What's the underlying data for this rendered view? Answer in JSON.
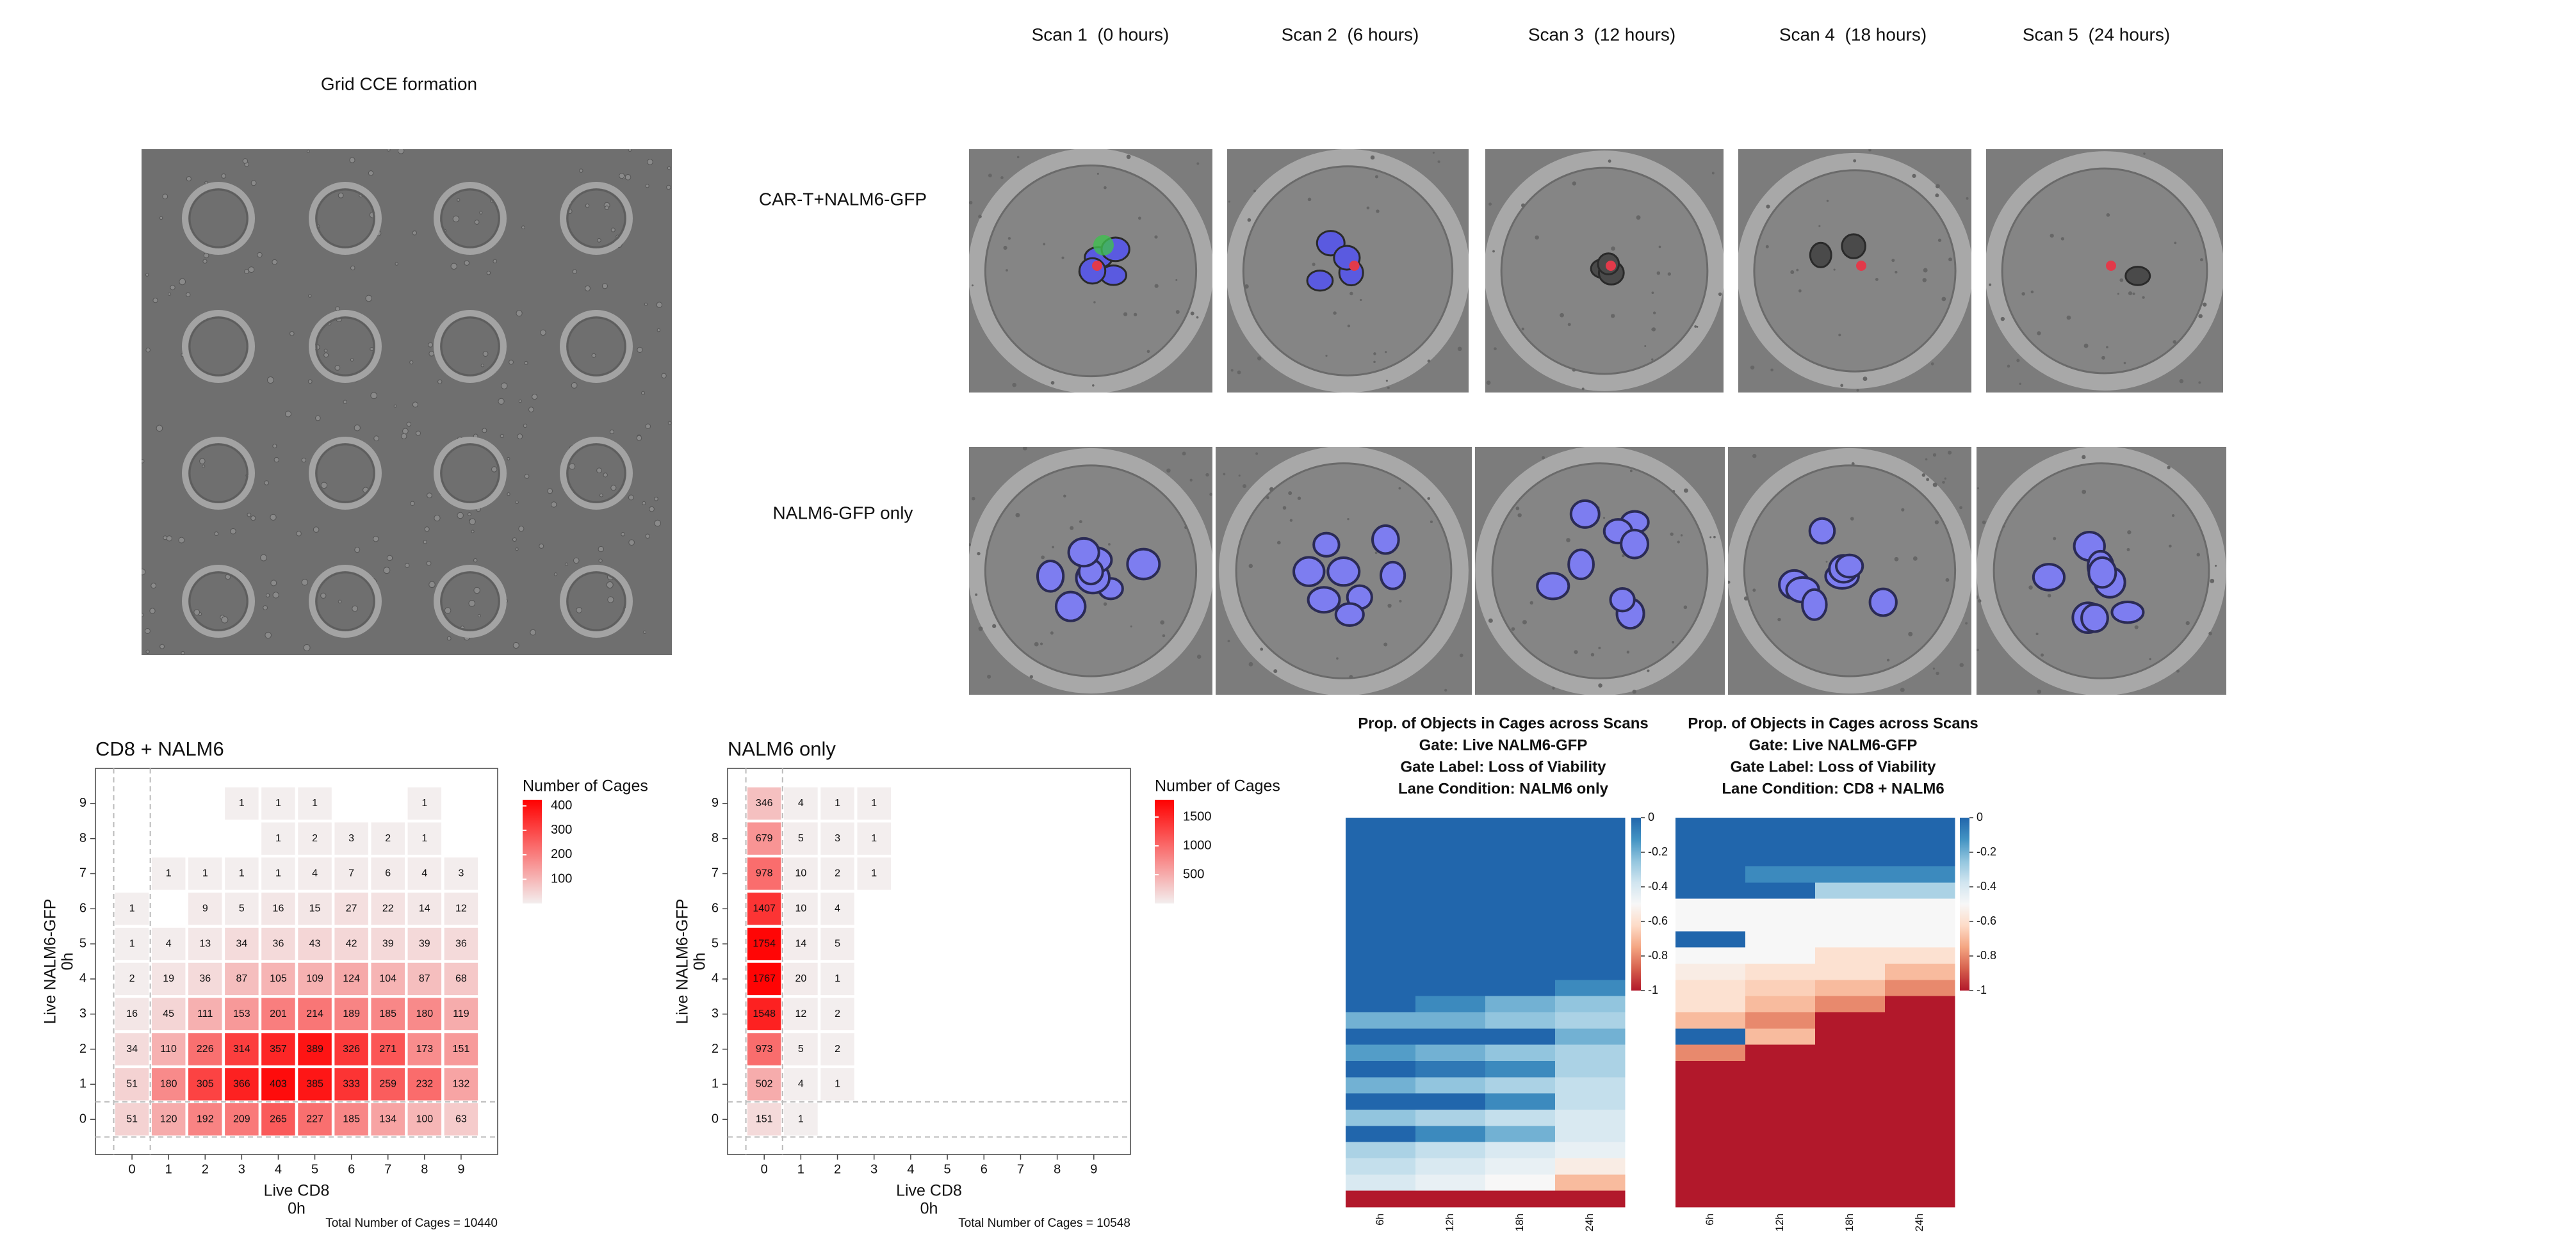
{
  "grid_panel": {
    "title": "Grid CCE formation"
  },
  "scans": [
    "Scan 1  (0 hours)",
    "Scan 2  (6 hours)",
    "Scan 3  (12 hours)",
    "Scan 4  (18 hours)",
    "Scan 5  (24 hours)"
  ],
  "conditions": [
    "CAR-T+NALM6-GFP",
    "NALM6-GFP only"
  ],
  "chart_data": [
    {
      "type": "heatmap",
      "title": "CD8 + NALM6",
      "xlabel": "Live CD8",
      "xlabel2": "0h",
      "ylabel": "Live NALM6-GFP",
      "ylabel2": "0h",
      "x": [
        0,
        1,
        2,
        3,
        4,
        5,
        6,
        7,
        8,
        9
      ],
      "y": [
        0,
        1,
        2,
        3,
        4,
        5,
        6,
        7,
        8,
        9
      ],
      "z": [
        [
          51,
          120,
          192,
          209,
          265,
          227,
          185,
          134,
          100,
          63
        ],
        [
          51,
          180,
          305,
          366,
          403,
          385,
          333,
          259,
          232,
          132
        ],
        [
          34,
          110,
          226,
          314,
          357,
          389,
          326,
          271,
          173,
          151
        ],
        [
          16,
          45,
          111,
          153,
          201,
          214,
          189,
          185,
          180,
          119
        ],
        [
          2,
          19,
          36,
          87,
          105,
          109,
          124,
          104,
          87,
          68
        ],
        [
          1,
          4,
          13,
          34,
          36,
          43,
          42,
          39,
          39,
          36
        ],
        [
          1,
          null,
          9,
          5,
          16,
          15,
          27,
          22,
          14,
          12
        ],
        [
          null,
          1,
          1,
          1,
          1,
          4,
          7,
          6,
          4,
          3
        ],
        [
          null,
          null,
          null,
          null,
          1,
          2,
          3,
          2,
          1,
          null
        ],
        [
          null,
          null,
          null,
          1,
          1,
          1,
          null,
          null,
          1,
          null
        ]
      ],
      "xlim": [
        -1,
        10
      ],
      "ylim": [
        -1,
        10
      ],
      "xticks": [
        0,
        1,
        2,
        3,
        4,
        5,
        6,
        7,
        8,
        9
      ],
      "yticks": [
        0,
        1,
        2,
        3,
        4,
        5,
        6,
        7,
        8,
        9
      ],
      "legend_title": "Number of Cages",
      "clim": [
        1,
        425
      ],
      "cticks": [
        100,
        200,
        300,
        400
      ],
      "colors": [
        "#f3eeee",
        "#ff0000"
      ],
      "note": "Total Number of Cages = 10440"
    },
    {
      "type": "heatmap",
      "title": "NALM6 only",
      "xlabel": "Live CD8",
      "xlabel2": "0h",
      "ylabel": "Live NALM6-GFP",
      "ylabel2": "0h",
      "x": [
        0,
        1,
        2,
        3,
        4,
        5,
        6,
        7,
        8,
        9
      ],
      "y": [
        0,
        1,
        2,
        3,
        4,
        5,
        6,
        7,
        8,
        9
      ],
      "z": [
        [
          151,
          1,
          null,
          null,
          null,
          null,
          null,
          null,
          null,
          null
        ],
        [
          502,
          4,
          1,
          null,
          null,
          null,
          null,
          null,
          null,
          null
        ],
        [
          973,
          5,
          2,
          null,
          null,
          null,
          null,
          null,
          null,
          null
        ],
        [
          1548,
          12,
          2,
          null,
          null,
          null,
          null,
          null,
          null,
          null
        ],
        [
          1767,
          20,
          1,
          null,
          null,
          null,
          null,
          null,
          null,
          null
        ],
        [
          1754,
          14,
          5,
          null,
          null,
          null,
          null,
          null,
          null,
          null
        ],
        [
          1407,
          10,
          4,
          null,
          null,
          null,
          null,
          null,
          null,
          null
        ],
        [
          978,
          10,
          2,
          1,
          null,
          null,
          null,
          null,
          null,
          null
        ],
        [
          679,
          5,
          3,
          1,
          null,
          null,
          null,
          null,
          null,
          null
        ],
        [
          346,
          4,
          1,
          1,
          null,
          null,
          null,
          null,
          null,
          null
        ]
      ],
      "xlim": [
        -1,
        10
      ],
      "ylim": [
        -1,
        10
      ],
      "xticks": [
        0,
        1,
        2,
        3,
        4,
        5,
        6,
        7,
        8,
        9
      ],
      "yticks": [
        0,
        1,
        2,
        3,
        4,
        5,
        6,
        7,
        8,
        9
      ],
      "legend_title": "Number of Cages",
      "clim": [
        1,
        1800
      ],
      "cticks": [
        500,
        1000,
        1500
      ],
      "colors": [
        "#f3eeee",
        "#ff0000"
      ],
      "note": "Total Number of Cages = 10548"
    },
    {
      "type": "rowheatmap",
      "title": [
        "Prop. of Objects in Cages across Scans",
        "Gate: Live NALM6-GFP",
        "Gate Label: Loss of Viability",
        "Lane Condition: NALM6 only"
      ],
      "categories": [
        "6h",
        "12h",
        "18h",
        "24h"
      ],
      "rows": [
        [
          0,
          0,
          0,
          0
        ],
        [
          0,
          0,
          0,
          0
        ],
        [
          0,
          0,
          0,
          0
        ],
        [
          0,
          0,
          0,
          0
        ],
        [
          0,
          0,
          0,
          0
        ],
        [
          0,
          0,
          0,
          0
        ],
        [
          0,
          0,
          0,
          0
        ],
        [
          0,
          0,
          0,
          0
        ],
        [
          0,
          0,
          0,
          0
        ],
        [
          0,
          0,
          0,
          0
        ],
        [
          0,
          0,
          0,
          -0.1
        ],
        [
          0,
          -0.1,
          -0.2,
          -0.25
        ],
        [
          -0.2,
          -0.2,
          -0.25,
          -0.3
        ],
        [
          0,
          0,
          0,
          -0.2
        ],
        [
          -0.15,
          -0.2,
          -0.25,
          -0.3
        ],
        [
          0,
          -0.05,
          -0.1,
          -0.3
        ],
        [
          -0.2,
          -0.25,
          -0.3,
          -0.35
        ],
        [
          0,
          0,
          -0.1,
          -0.35
        ],
        [
          -0.25,
          -0.3,
          -0.35,
          -0.4
        ],
        [
          0,
          -0.1,
          -0.2,
          -0.4
        ],
        [
          -0.3,
          -0.35,
          -0.4,
          -0.45
        ],
        [
          -0.35,
          -0.4,
          -0.45,
          -0.55
        ],
        [
          -0.4,
          -0.45,
          -0.5,
          -0.7
        ],
        [
          -1,
          -1,
          -1,
          -1
        ]
      ],
      "clim": [
        -1,
        0
      ],
      "cticks": [
        0,
        -0.2,
        -0.4,
        -0.6,
        -0.8,
        -1
      ],
      "colors": [
        "#b2182b",
        "#d6604d",
        "#f4a582",
        "#fddbc7",
        "#f7f7f7",
        "#d1e5f0",
        "#92c5de",
        "#4393c3",
        "#2166ac"
      ]
    },
    {
      "type": "rowheatmap",
      "title": [
        "Prop. of Objects in Cages across Scans",
        "Gate: Live NALM6-GFP",
        "Gate Label: Loss of Viability",
        "Lane Condition: CD8 + NALM6"
      ],
      "categories": [
        "6h",
        "12h",
        "18h",
        "24h"
      ],
      "rows": [
        [
          0,
          0,
          0,
          0
        ],
        [
          0,
          0,
          0,
          0
        ],
        [
          0,
          0,
          0,
          0
        ],
        [
          0,
          -0.1,
          -0.1,
          -0.1
        ],
        [
          0,
          0,
          -0.3,
          -0.3
        ],
        [
          -0.5,
          -0.5,
          -0.5,
          -0.5
        ],
        [
          -0.5,
          -0.5,
          -0.5,
          -0.5
        ],
        [
          0,
          -0.5,
          -0.5,
          -0.5
        ],
        [
          -0.5,
          -0.5,
          -0.6,
          -0.6
        ],
        [
          -0.55,
          -0.6,
          -0.6,
          -0.7
        ],
        [
          -0.6,
          -0.65,
          -0.7,
          -0.8
        ],
        [
          -0.6,
          -0.7,
          -0.8,
          -1
        ],
        [
          -0.7,
          -0.8,
          -1,
          -1
        ],
        [
          0,
          -0.7,
          -1,
          -1
        ],
        [
          -0.8,
          -1,
          -1,
          -1
        ],
        [
          -1,
          -1,
          -1,
          -1
        ],
        [
          -1,
          -1,
          -1,
          -1
        ],
        [
          -1,
          -1,
          -1,
          -1
        ],
        [
          -1,
          -1,
          -1,
          -1
        ],
        [
          -1,
          -1,
          -1,
          -1
        ],
        [
          -1,
          -1,
          -1,
          -1
        ],
        [
          -1,
          -1,
          -1,
          -1
        ],
        [
          -1,
          -1,
          -1,
          -1
        ],
        [
          -1,
          -1,
          -1,
          -1
        ]
      ],
      "clim": [
        -1,
        0
      ],
      "cticks": [
        0,
        -0.2,
        -0.4,
        -0.6,
        -0.8,
        -1
      ],
      "colors": [
        "#b2182b",
        "#d6604d",
        "#f4a582",
        "#fddbc7",
        "#f7f7f7",
        "#d1e5f0",
        "#92c5de",
        "#4393c3",
        "#2166ac"
      ]
    }
  ]
}
